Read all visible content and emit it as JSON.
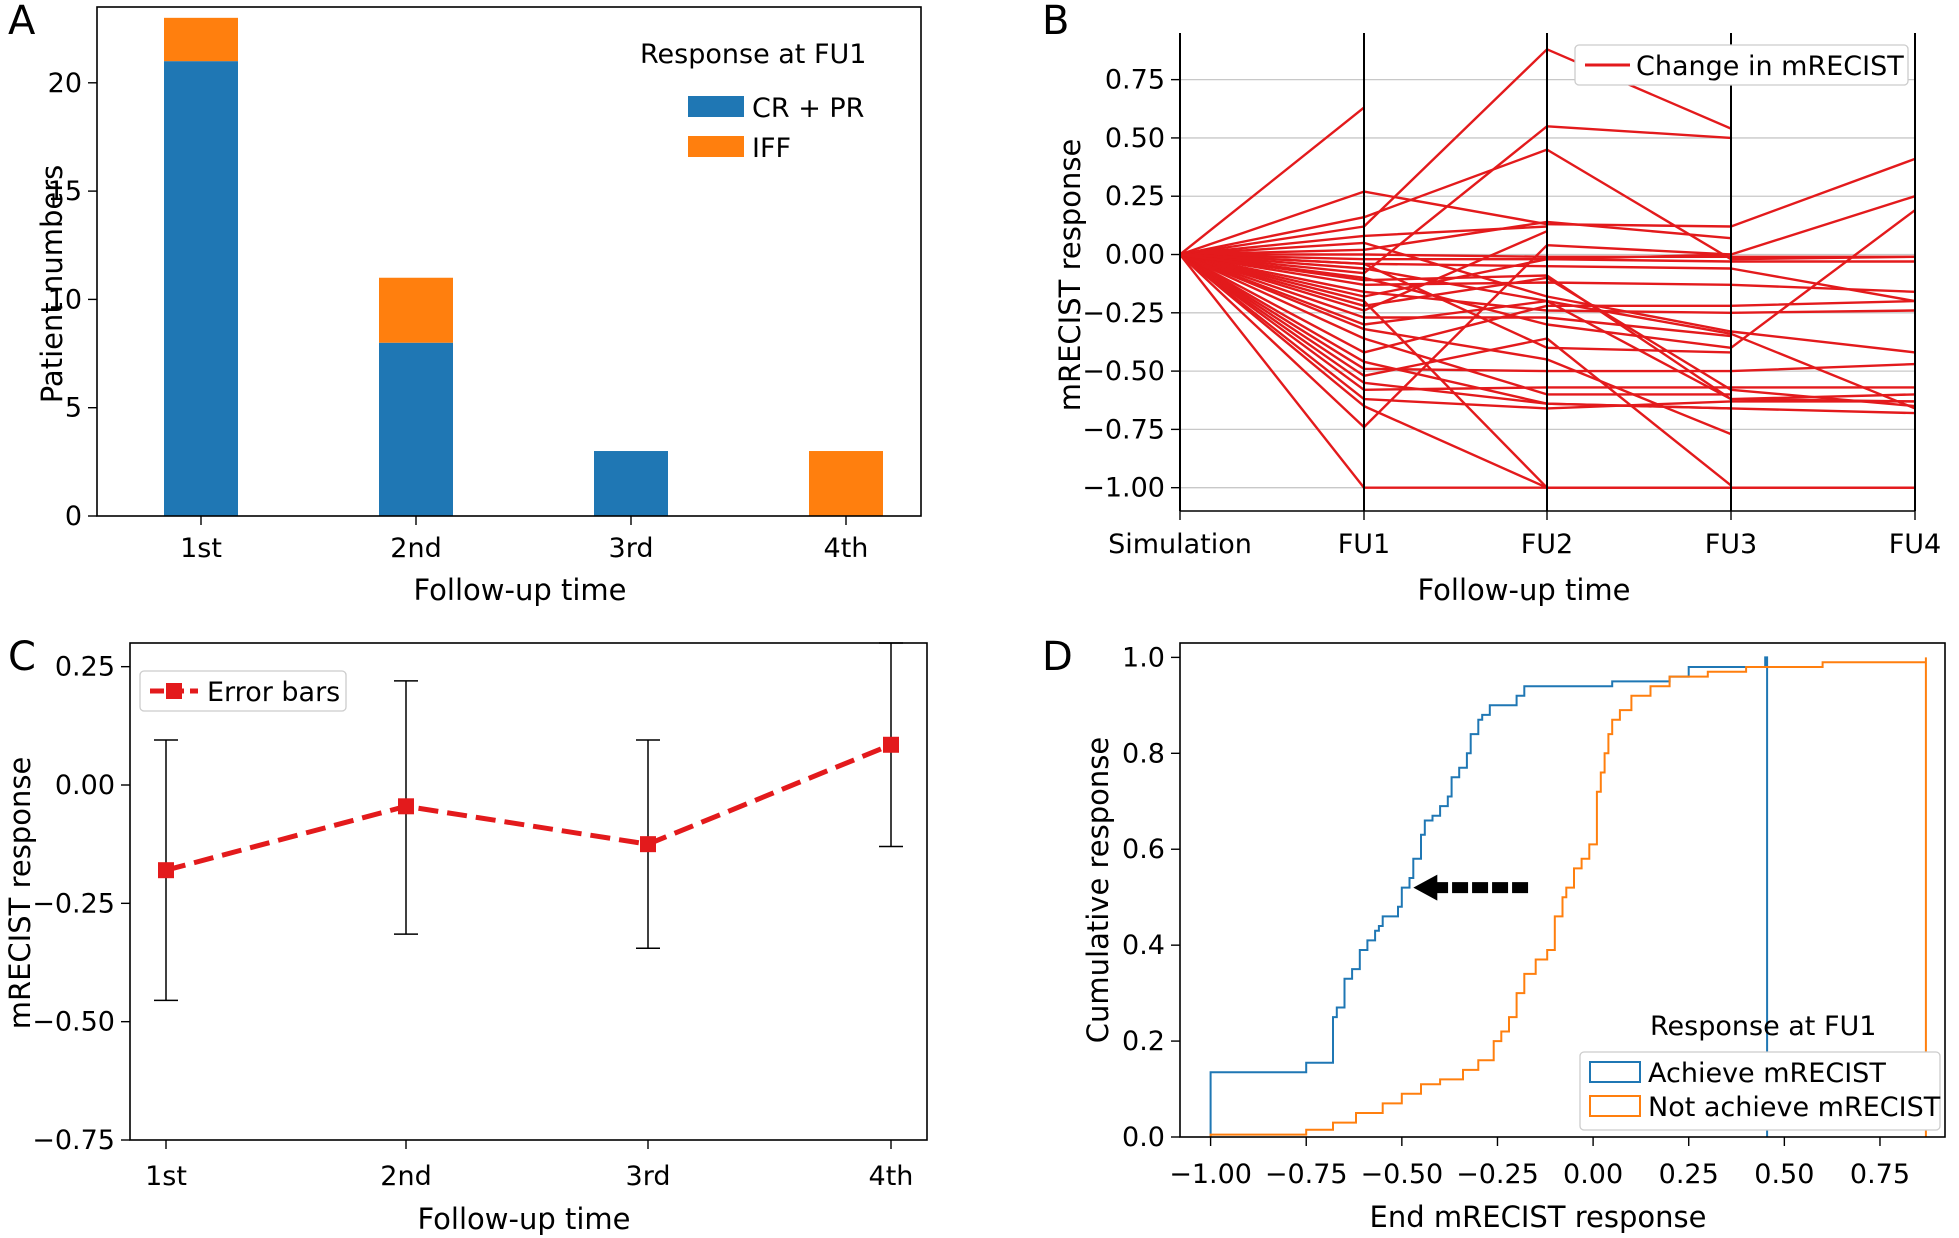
{
  "colors": {
    "blue": "#1f77b4",
    "orange": "#ff7f0e",
    "red": "#e31a1c"
  },
  "chart_data": [
    {
      "panel": "A",
      "type": "bar",
      "stacked": true,
      "categories": [
        "1st",
        "2nd",
        "3rd",
        "4th"
      ],
      "series": [
        {
          "name": "CR + PR",
          "values": [
            21,
            8,
            3,
            0
          ]
        },
        {
          "name": "IFF",
          "values": [
            2,
            3,
            0,
            3
          ]
        }
      ],
      "xlabel": "Follow-up time",
      "ylabel": "Patient numbers",
      "ylim": [
        0,
        23.5
      ],
      "yticks": [
        0,
        5,
        10,
        15,
        20
      ],
      "legend_title": "Response at FU1",
      "legend_position": "upper-right"
    },
    {
      "panel": "B",
      "type": "line",
      "categories": [
        "Simulation",
        "FU1",
        "FU2",
        "FU3",
        "FU4"
      ],
      "series_name": "Change in mRECIST",
      "lines": [
        [
          0,
          0.63
        ],
        [
          0,
          0.27,
          0.13,
          0.12,
          0.41
        ],
        [
          0,
          0.16,
          0.45,
          -0.02,
          -0.01
        ],
        [
          0,
          0.12,
          0.88,
          0.54
        ],
        [
          0,
          0.08,
          0.12
        ],
        [
          0,
          0.05,
          -0.18,
          -0.33,
          -0.42
        ],
        [
          0,
          0.02,
          0.14,
          0.07
        ],
        [
          0,
          0.0,
          -0.01,
          -0.01,
          -0.01
        ],
        [
          0,
          -0.02,
          -0.02,
          0.0,
          0.25
        ],
        [
          0,
          -0.04,
          -0.05,
          -0.06,
          -0.2
        ],
        [
          0,
          -0.06,
          -0.2,
          -0.34,
          -0.66
        ],
        [
          0,
          -0.08,
          0.55,
          0.5
        ],
        [
          0,
          -0.1,
          -0.3,
          -0.4,
          0.19
        ],
        [
          0,
          -0.13,
          -0.12,
          -0.13,
          -0.16
        ],
        [
          0,
          -0.16,
          -0.24,
          -0.25,
          -0.24
        ],
        [
          0,
          -0.18,
          -0.02,
          -0.03,
          -0.03
        ],
        [
          0,
          -0.2,
          -1.0,
          -1.0,
          -1.0
        ],
        [
          0,
          -0.22,
          -0.1,
          -0.58,
          -0.65
        ],
        [
          0,
          -0.24,
          0.1
        ],
        [
          0,
          -0.27,
          -0.27,
          -0.35
        ],
        [
          0,
          -0.3,
          -0.2,
          -0.62,
          -0.6
        ],
        [
          0,
          -0.32,
          -0.45,
          -0.77
        ],
        [
          0,
          -0.36,
          -0.6,
          -0.6
        ],
        [
          0,
          -0.42,
          -0.22,
          -0.22,
          -0.2
        ],
        [
          0,
          -0.46,
          -0.64,
          -0.66
        ],
        [
          0,
          -0.49,
          -0.5,
          -0.5,
          -0.47
        ],
        [
          0,
          -0.52,
          -0.36,
          -0.99
        ],
        [
          0,
          -0.55,
          -0.64,
          -0.66,
          -0.68
        ],
        [
          0,
          -0.58,
          -0.57,
          -0.57,
          -0.57
        ],
        [
          0,
          -0.62,
          -0.66,
          -0.63,
          -0.63
        ],
        [
          0,
          -0.65,
          -1.0
        ],
        [
          0,
          -0.74,
          0.04,
          0.0
        ],
        [
          0,
          -1.0,
          -1.0,
          -1.0,
          -1.0
        ],
        [
          0,
          -0.11,
          -0.09,
          -0.62,
          -0.63
        ],
        [
          0,
          -0.04,
          -0.4,
          -0.42
        ]
      ],
      "xlabel": "Follow-up time",
      "ylabel": "mRECIST response",
      "ylim": [
        -1.1,
        0.95
      ],
      "yticks": [
        -1.0,
        -0.75,
        -0.5,
        -0.25,
        0.0,
        0.25,
        0.5,
        0.75
      ],
      "ytick_labels": [
        "−1.00",
        "−0.75",
        "−0.50",
        "−0.25",
        "0.00",
        "0.25",
        "0.50",
        "0.75"
      ],
      "grid": "horizontal",
      "legend_position": "upper-right"
    },
    {
      "panel": "C",
      "type": "line",
      "categories": [
        "1st",
        "2nd",
        "3rd",
        "4th"
      ],
      "series": [
        {
          "name": "Error bars",
          "values": [
            -0.18,
            -0.045,
            -0.125,
            0.085
          ],
          "err_low": [
            -0.455,
            -0.315,
            -0.345,
            -0.13
          ],
          "err_high": [
            0.095,
            0.22,
            0.095,
            0.3
          ]
        }
      ],
      "xlabel": "Follow-up time",
      "ylabel": "mRECIST response",
      "ylim": [
        -0.75,
        0.3
      ],
      "yticks": [
        -0.75,
        -0.5,
        -0.25,
        0.0,
        0.25
      ],
      "ytick_labels": [
        "−0.75",
        "−0.50",
        "−0.25",
        "0.00",
        "0.25"
      ],
      "legend_position": "upper-left"
    },
    {
      "panel": "D",
      "type": "line",
      "step": true,
      "series": [
        {
          "name": "Achieve mRECIST",
          "points": [
            [
              -1.0,
              0
            ],
            [
              -1.0,
              0.135
            ],
            [
              -0.75,
              0.135
            ],
            [
              -0.75,
              0.155
            ],
            [
              -0.68,
              0.155
            ],
            [
              -0.68,
              0.25
            ],
            [
              -0.67,
              0.27
            ],
            [
              -0.65,
              0.27
            ],
            [
              -0.65,
              0.33
            ],
            [
              -0.63,
              0.35
            ],
            [
              -0.61,
              0.36
            ],
            [
              -0.61,
              0.39
            ],
            [
              -0.59,
              0.41
            ],
            [
              -0.57,
              0.43
            ],
            [
              -0.56,
              0.44
            ],
            [
              -0.55,
              0.46
            ],
            [
              -0.53,
              0.46
            ],
            [
              -0.51,
              0.48
            ],
            [
              -0.5,
              0.52
            ],
            [
              -0.48,
              0.54
            ],
            [
              -0.47,
              0.58
            ],
            [
              -0.45,
              0.63
            ],
            [
              -0.44,
              0.66
            ],
            [
              -0.42,
              0.67
            ],
            [
              -0.4,
              0.69
            ],
            [
              -0.38,
              0.71
            ],
            [
              -0.37,
              0.75
            ],
            [
              -0.35,
              0.77
            ],
            [
              -0.33,
              0.8
            ],
            [
              -0.32,
              0.84
            ],
            [
              -0.3,
              0.87
            ],
            [
              -0.29,
              0.88
            ],
            [
              -0.27,
              0.9
            ],
            [
              -0.2,
              0.92
            ],
            [
              -0.18,
              0.94
            ],
            [
              0.05,
              0.95
            ],
            [
              0.2,
              0.96
            ],
            [
              0.25,
              0.98
            ],
            [
              0.42,
              0.98
            ],
            [
              0.45,
              0.985
            ],
            [
              0.45,
              1.0
            ],
            [
              0.455,
              1.0
            ],
            [
              0.455,
              0.0
            ]
          ]
        },
        {
          "name": "Not achieve mRECIST",
          "points": [
            [
              -1.0,
              0
            ],
            [
              -1.0,
              0.005
            ],
            [
              -0.78,
              0.005
            ],
            [
              -0.75,
              0.015
            ],
            [
              -0.68,
              0.03
            ],
            [
              -0.62,
              0.05
            ],
            [
              -0.55,
              0.07
            ],
            [
              -0.5,
              0.09
            ],
            [
              -0.45,
              0.11
            ],
            [
              -0.4,
              0.12
            ],
            [
              -0.34,
              0.14
            ],
            [
              -0.3,
              0.16
            ],
            [
              -0.26,
              0.2
            ],
            [
              -0.24,
              0.22
            ],
            [
              -0.22,
              0.25
            ],
            [
              -0.2,
              0.3
            ],
            [
              -0.18,
              0.34
            ],
            [
              -0.15,
              0.37
            ],
            [
              -0.12,
              0.39
            ],
            [
              -0.1,
              0.46
            ],
            [
              -0.08,
              0.5
            ],
            [
              -0.07,
              0.52
            ],
            [
              -0.05,
              0.56
            ],
            [
              -0.03,
              0.58
            ],
            [
              -0.01,
              0.61
            ],
            [
              0.01,
              0.66
            ],
            [
              0.01,
              0.72
            ],
            [
              0.02,
              0.76
            ],
            [
              0.03,
              0.8
            ],
            [
              0.04,
              0.84
            ],
            [
              0.05,
              0.87
            ],
            [
              0.07,
              0.89
            ],
            [
              0.1,
              0.92
            ],
            [
              0.15,
              0.94
            ],
            [
              0.2,
              0.96
            ],
            [
              0.3,
              0.97
            ],
            [
              0.4,
              0.98
            ],
            [
              0.6,
              0.99
            ],
            [
              0.87,
              1.0
            ],
            [
              0.87,
              0.0
            ]
          ]
        }
      ],
      "xlabel": "End mRECIST response",
      "ylabel": "Cumulative response",
      "xlim": [
        -1.08,
        0.92
      ],
      "ylim": [
        0,
        1.03
      ],
      "xticks": [
        -1.0,
        -0.75,
        -0.5,
        -0.25,
        0.0,
        0.25,
        0.5,
        0.75
      ],
      "xtick_labels": [
        "−1.00",
        "−0.75",
        "−0.50",
        "−0.25",
        "0.00",
        "0.25",
        "0.50",
        "0.75"
      ],
      "yticks": [
        0.0,
        0.2,
        0.4,
        0.6,
        0.8,
        1.0
      ],
      "ytick_labels": [
        "0.0",
        "0.2",
        "0.4",
        "0.6",
        "0.8",
        "1.0"
      ],
      "legend_title": "Response at FU1",
      "legend_position": "lower-right",
      "annotation": {
        "type": "arrow",
        "from": [
          -0.17,
          0.52
        ],
        "to": [
          -0.47,
          0.52
        ],
        "direction": "left"
      }
    }
  ]
}
